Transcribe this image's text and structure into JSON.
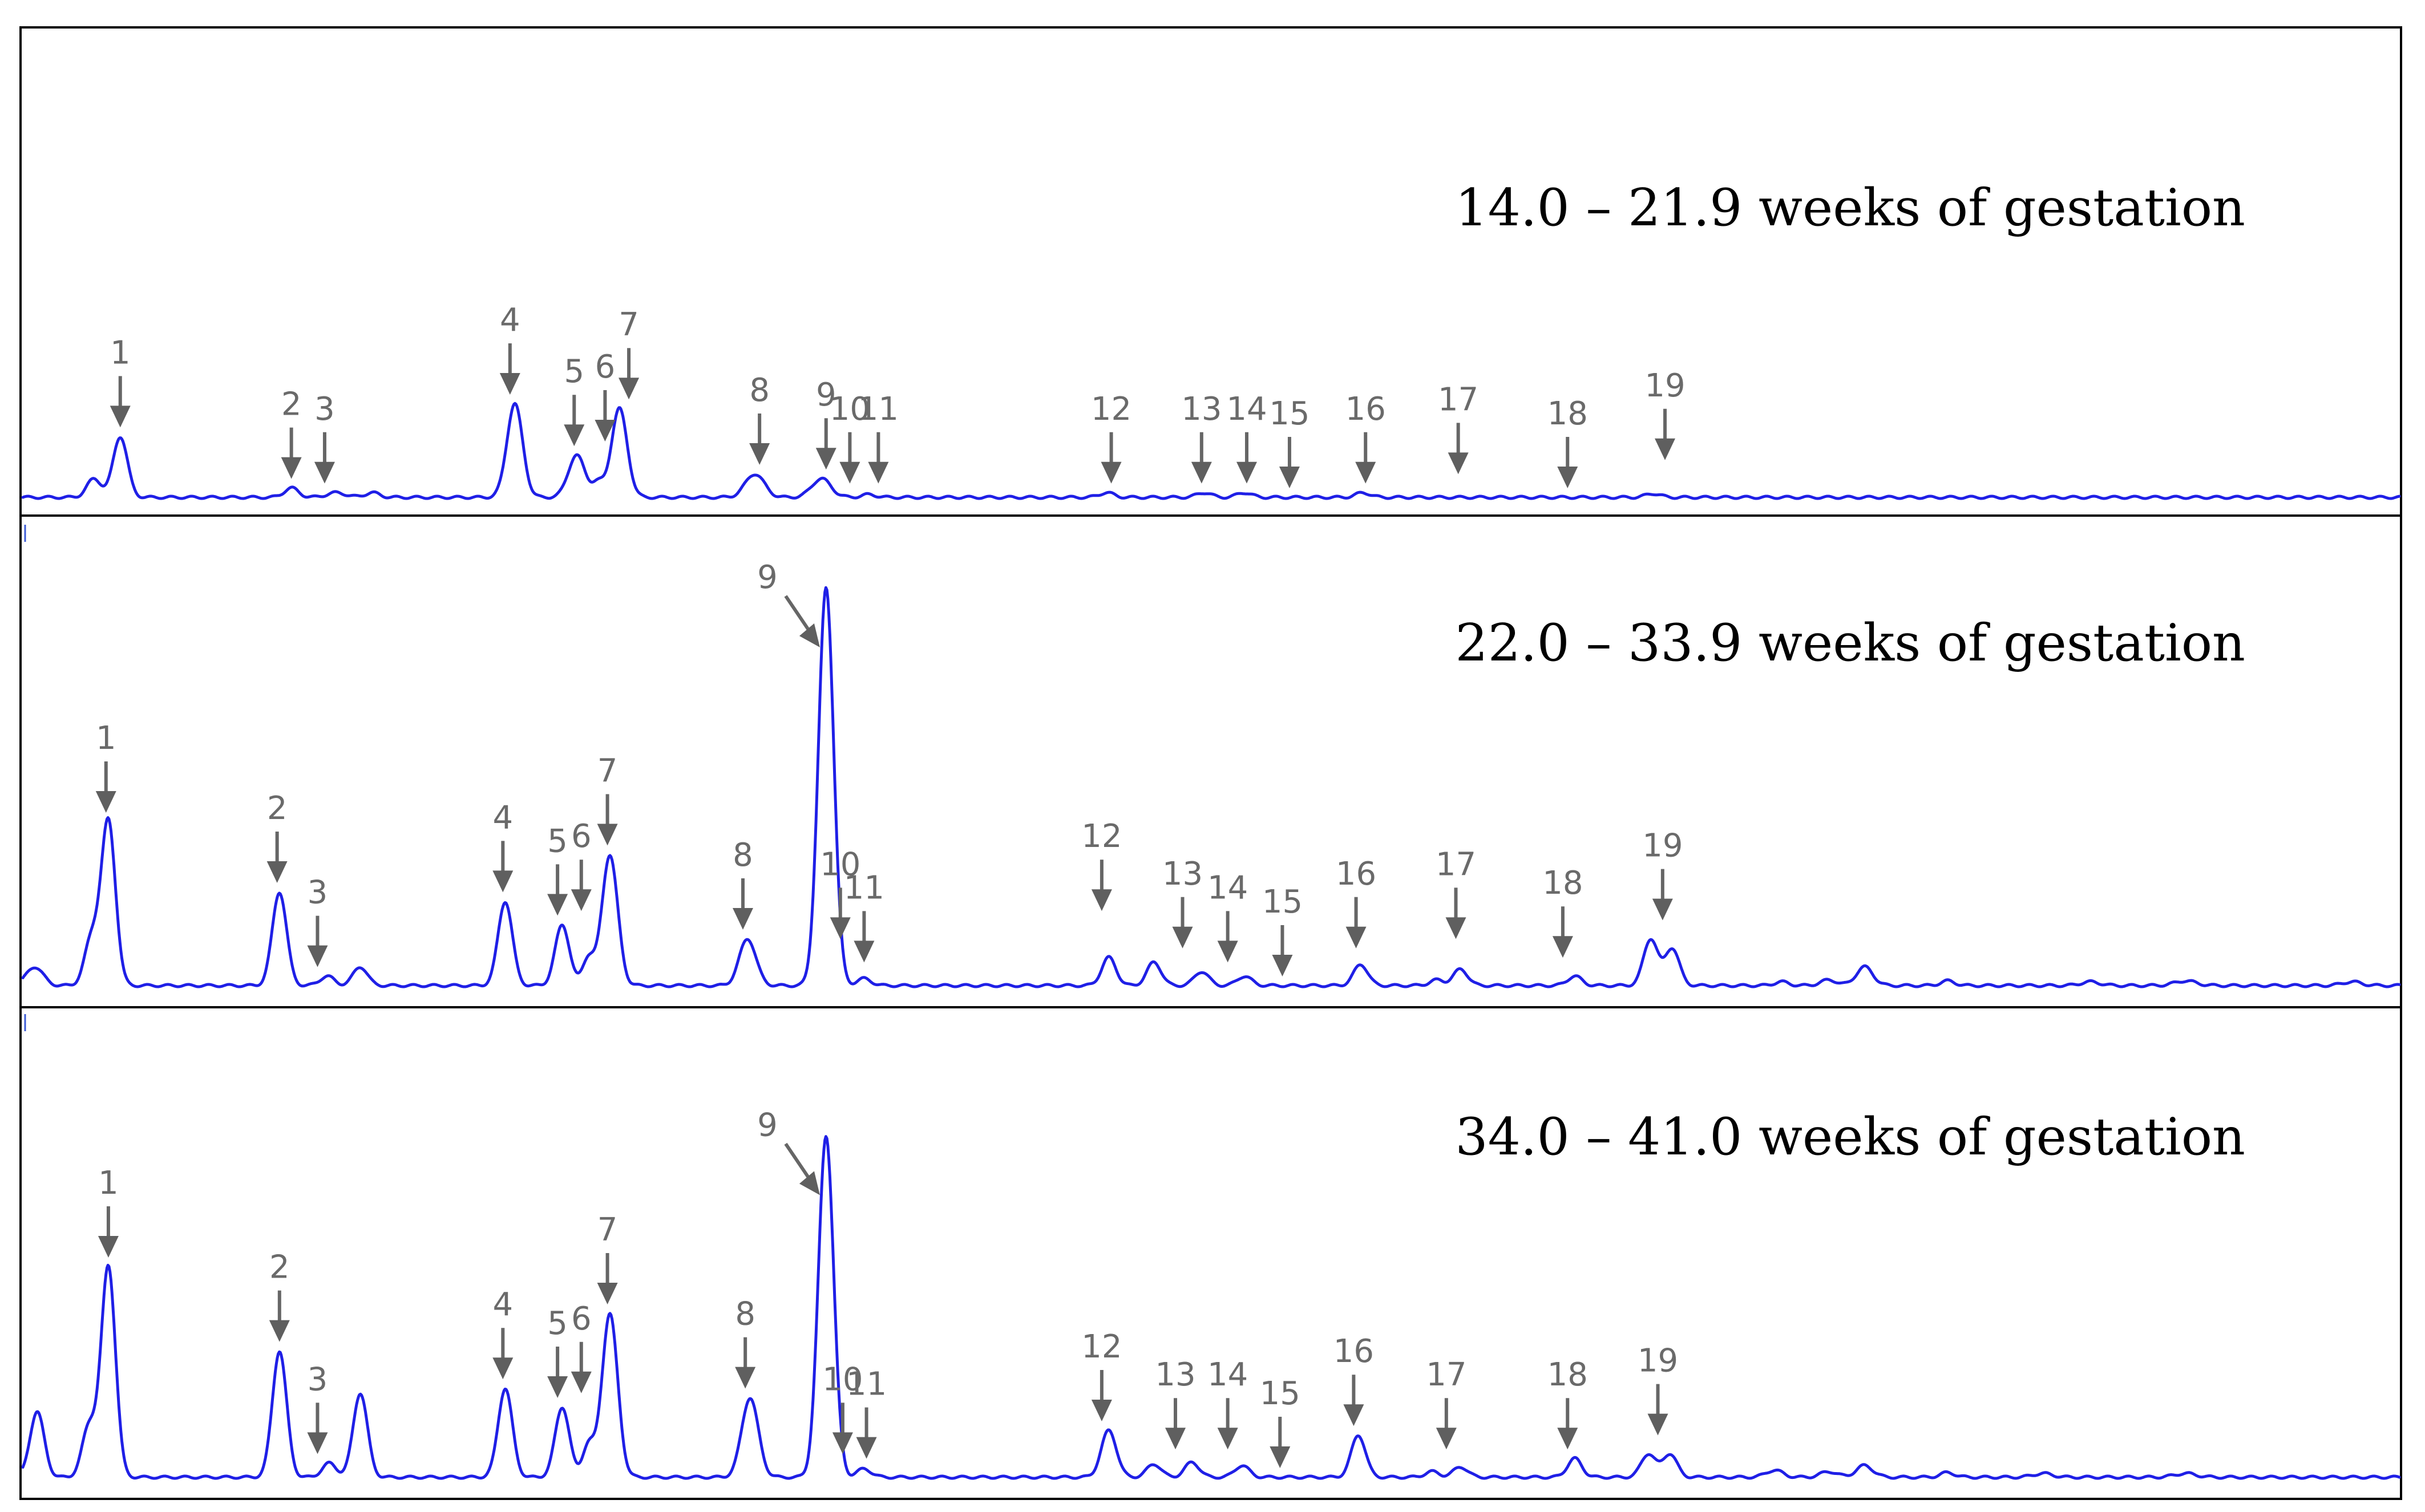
{
  "chart_data": {
    "type": "line",
    "description_kind": "chromatogram",
    "trace_color": "#1f1fe6",
    "annotation_color": "#666666",
    "x_range": [
      0,
      100
    ],
    "x_unit": "relative retention position",
    "y_range": [
      0,
      100
    ],
    "y_unit": "relative signal",
    "panels": [
      {
        "title": "14.0 – 21.9 weeks of gestation",
        "peaks": [
          {
            "x": 3.0,
            "h": 4,
            "w": 0.3
          },
          {
            "x": 4.1,
            "h": 13,
            "w": 0.3
          },
          {
            "x": 11.3,
            "h": 2,
            "w": 0.3
          },
          {
            "x": 13.2,
            "h": 1,
            "w": 0.4
          },
          {
            "x": 14.7,
            "h": 1,
            "w": 0.3
          },
          {
            "x": 20.7,
            "h": 20,
            "w": 0.33
          },
          {
            "x": 23.3,
            "h": 9,
            "w": 0.35
          },
          {
            "x": 24.2,
            "h": 3,
            "w": 0.25
          },
          {
            "x": 25.1,
            "h": 19,
            "w": 0.33
          },
          {
            "x": 30.8,
            "h": 5,
            "w": 0.4
          },
          {
            "x": 33.6,
            "h": 4,
            "w": 0.4
          },
          {
            "x": 35.6,
            "h": 0.6,
            "w": 0.3
          },
          {
            "x": 45.6,
            "h": 1,
            "w": 0.3
          },
          {
            "x": 49.7,
            "h": 1,
            "w": 0.3
          },
          {
            "x": 51.4,
            "h": 1,
            "w": 0.3
          },
          {
            "x": 56.4,
            "h": 1,
            "w": 0.3
          },
          {
            "x": 68.6,
            "h": 0.8,
            "w": 0.3
          }
        ],
        "labels": [
          {
            "text": "1",
            "x": 4.1,
            "peak_y": 13,
            "style": "down"
          },
          {
            "text": "2",
            "x": 11.3,
            "peak_y": 2,
            "style": "down"
          },
          {
            "text": "3",
            "x": 12.7,
            "peak_y": 1,
            "style": "down"
          },
          {
            "text": "4",
            "x": 20.5,
            "peak_y": 20,
            "style": "down"
          },
          {
            "text": "5",
            "x": 23.2,
            "peak_y": 9,
            "style": "down"
          },
          {
            "text": "6",
            "x": 24.5,
            "peak_y": 10,
            "style": "down"
          },
          {
            "text": "7",
            "x": 25.5,
            "peak_y": 19,
            "style": "down"
          },
          {
            "text": "8",
            "x": 31.0,
            "peak_y": 5,
            "style": "down"
          },
          {
            "text": "9",
            "x": 33.8,
            "peak_y": 4,
            "style": "down"
          },
          {
            "text": "10",
            "x": 34.8,
            "peak_y": 1,
            "style": "down"
          },
          {
            "text": "11",
            "x": 36.0,
            "peak_y": 1,
            "style": "down"
          },
          {
            "text": "12",
            "x": 45.8,
            "peak_y": 1,
            "style": "down"
          },
          {
            "text": "13",
            "x": 49.6,
            "peak_y": 1,
            "style": "down"
          },
          {
            "text": "14",
            "x": 51.5,
            "peak_y": 1,
            "style": "down"
          },
          {
            "text": "15",
            "x": 53.3,
            "peak_y": 0,
            "style": "down"
          },
          {
            "text": "16",
            "x": 56.5,
            "peak_y": 1,
            "style": "down"
          },
          {
            "text": "17",
            "x": 60.4,
            "peak_y": 3,
            "style": "down"
          },
          {
            "text": "18",
            "x": 65.0,
            "peak_y": 0,
            "style": "down"
          },
          {
            "text": "19",
            "x": 69.1,
            "peak_y": 6,
            "style": "down"
          }
        ]
      },
      {
        "title": "22.0 – 33.9 weeks of gestation",
        "peaks": [
          {
            "x": 0.5,
            "h": 4,
            "w": 0.35
          },
          {
            "x": 2.9,
            "h": 10,
            "w": 0.3
          },
          {
            "x": 3.6,
            "h": 35,
            "w": 0.3
          },
          {
            "x": 10.8,
            "h": 20,
            "w": 0.3
          },
          {
            "x": 12.8,
            "h": 2,
            "w": 0.3
          },
          {
            "x": 14.2,
            "h": 4,
            "w": 0.3
          },
          {
            "x": 20.3,
            "h": 18,
            "w": 0.3
          },
          {
            "x": 22.7,
            "h": 13,
            "w": 0.3
          },
          {
            "x": 23.8,
            "h": 6,
            "w": 0.25
          },
          {
            "x": 24.7,
            "h": 28,
            "w": 0.33
          },
          {
            "x": 30.5,
            "h": 10,
            "w": 0.35
          },
          {
            "x": 33.8,
            "h": 85,
            "w": 0.32
          },
          {
            "x": 35.4,
            "h": 1.5,
            "w": 0.3
          },
          {
            "x": 45.7,
            "h": 6,
            "w": 0.3
          },
          {
            "x": 47.6,
            "h": 5,
            "w": 0.3
          },
          {
            "x": 49.6,
            "h": 3,
            "w": 0.3
          },
          {
            "x": 51.4,
            "h": 2,
            "w": 0.3
          },
          {
            "x": 56.3,
            "h": 4.5,
            "w": 0.3
          },
          {
            "x": 59.5,
            "h": 1.2,
            "w": 0.3
          },
          {
            "x": 60.5,
            "h": 3.5,
            "w": 0.3
          },
          {
            "x": 65.3,
            "h": 2,
            "w": 0.3
          },
          {
            "x": 68.5,
            "h": 10,
            "w": 0.3
          },
          {
            "x": 69.4,
            "h": 8,
            "w": 0.3
          },
          {
            "x": 74.0,
            "h": 0.8,
            "w": 0.3
          },
          {
            "x": 76.0,
            "h": 1.2,
            "w": 0.35
          },
          {
            "x": 77.5,
            "h": 4,
            "w": 0.35
          },
          {
            "x": 81.0,
            "h": 1.0,
            "w": 0.3
          },
          {
            "x": 87.0,
            "h": 0.8,
            "w": 0.4
          },
          {
            "x": 91.0,
            "h": 1.0,
            "w": 0.45
          },
          {
            "x": 98.0,
            "h": 0.8,
            "w": 0.4
          }
        ],
        "labels": [
          {
            "text": "1",
            "x": 3.5,
            "peak_y": 35,
            "style": "down"
          },
          {
            "text": "2",
            "x": 10.7,
            "peak_y": 20,
            "style": "down"
          },
          {
            "text": "3",
            "x": 12.4,
            "peak_y": 2,
            "style": "down"
          },
          {
            "text": "4",
            "x": 20.2,
            "peak_y": 18,
            "style": "down"
          },
          {
            "text": "5",
            "x": 22.5,
            "peak_y": 13,
            "style": "down"
          },
          {
            "text": "6",
            "x": 23.5,
            "peak_y": 14,
            "style": "down"
          },
          {
            "text": "7",
            "x": 24.6,
            "peak_y": 28,
            "style": "down"
          },
          {
            "text": "8",
            "x": 30.3,
            "peak_y": 10,
            "style": "down"
          },
          {
            "text": "9",
            "x": 33.3,
            "peak_y": 85,
            "style": "diagonal"
          },
          {
            "text": "10",
            "x": 34.4,
            "peak_y": 8,
            "style": "down"
          },
          {
            "text": "11",
            "x": 35.4,
            "peak_y": 3,
            "style": "down"
          },
          {
            "text": "12",
            "x": 45.4,
            "peak_y": 14,
            "style": "down"
          },
          {
            "text": "13",
            "x": 48.8,
            "peak_y": 6,
            "style": "down"
          },
          {
            "text": "14",
            "x": 50.7,
            "peak_y": 3,
            "style": "down"
          },
          {
            "text": "15",
            "x": 53.0,
            "peak_y": 0,
            "style": "down"
          },
          {
            "text": "16",
            "x": 56.1,
            "peak_y": 6,
            "style": "down"
          },
          {
            "text": "17",
            "x": 60.3,
            "peak_y": 8,
            "style": "down"
          },
          {
            "text": "18",
            "x": 64.8,
            "peak_y": 4,
            "style": "down"
          },
          {
            "text": "19",
            "x": 69.0,
            "peak_y": 12,
            "style": "down"
          }
        ]
      },
      {
        "title": "34.0 – 41.0 weeks of gestation",
        "peaks": [
          {
            "x": 0.6,
            "h": 14,
            "w": 0.3
          },
          {
            "x": 2.8,
            "h": 11,
            "w": 0.3
          },
          {
            "x": 3.6,
            "h": 45,
            "w": 0.3
          },
          {
            "x": 10.8,
            "h": 27,
            "w": 0.3
          },
          {
            "x": 12.9,
            "h": 3,
            "w": 0.3
          },
          {
            "x": 14.2,
            "h": 18,
            "w": 0.3
          },
          {
            "x": 20.3,
            "h": 19,
            "w": 0.3
          },
          {
            "x": 22.7,
            "h": 15,
            "w": 0.3
          },
          {
            "x": 23.8,
            "h": 7,
            "w": 0.25
          },
          {
            "x": 24.7,
            "h": 35,
            "w": 0.33
          },
          {
            "x": 30.6,
            "h": 17,
            "w": 0.35
          },
          {
            "x": 33.8,
            "h": 73,
            "w": 0.32
          },
          {
            "x": 35.4,
            "h": 1.8,
            "w": 0.3
          },
          {
            "x": 45.7,
            "h": 10,
            "w": 0.32
          },
          {
            "x": 47.6,
            "h": 2.8,
            "w": 0.3
          },
          {
            "x": 49.2,
            "h": 3.2,
            "w": 0.3
          },
          {
            "x": 51.3,
            "h": 2.5,
            "w": 0.3
          },
          {
            "x": 56.2,
            "h": 9,
            "w": 0.3
          },
          {
            "x": 59.3,
            "h": 1.2,
            "w": 0.3
          },
          {
            "x": 60.5,
            "h": 2.2,
            "w": 0.3
          },
          {
            "x": 65.3,
            "h": 4,
            "w": 0.3
          },
          {
            "x": 68.4,
            "h": 5,
            "w": 0.3
          },
          {
            "x": 69.3,
            "h": 5,
            "w": 0.3
          },
          {
            "x": 73.7,
            "h": 1.5,
            "w": 0.35
          },
          {
            "x": 76.0,
            "h": 1.2,
            "w": 0.35
          },
          {
            "x": 77.5,
            "h": 2.5,
            "w": 0.35
          },
          {
            "x": 81.0,
            "h": 1.0,
            "w": 0.3
          },
          {
            "x": 85.0,
            "h": 0.8,
            "w": 0.4
          },
          {
            "x": 91.0,
            "h": 0.8,
            "w": 0.45
          }
        ],
        "labels": [
          {
            "text": "1",
            "x": 3.6,
            "peak_y": 45,
            "style": "down"
          },
          {
            "text": "2",
            "x": 10.8,
            "peak_y": 27,
            "style": "down"
          },
          {
            "text": "3",
            "x": 12.4,
            "peak_y": 3,
            "style": "down"
          },
          {
            "text": "4",
            "x": 20.2,
            "peak_y": 19,
            "style": "down"
          },
          {
            "text": "5",
            "x": 22.5,
            "peak_y": 15,
            "style": "down"
          },
          {
            "text": "6",
            "x": 23.5,
            "peak_y": 16,
            "style": "down"
          },
          {
            "text": "7",
            "x": 24.6,
            "peak_y": 35,
            "style": "down"
          },
          {
            "text": "8",
            "x": 30.4,
            "peak_y": 17,
            "style": "down"
          },
          {
            "text": "9",
            "x": 33.3,
            "peak_y": 73,
            "style": "diagonal"
          },
          {
            "text": "10",
            "x": 34.5,
            "peak_y": 3,
            "style": "down"
          },
          {
            "text": "11",
            "x": 35.5,
            "peak_y": 2,
            "style": "down"
          },
          {
            "text": "12",
            "x": 45.4,
            "peak_y": 10,
            "style": "down"
          },
          {
            "text": "13",
            "x": 48.5,
            "peak_y": 4,
            "style": "down"
          },
          {
            "text": "14",
            "x": 50.7,
            "peak_y": 4,
            "style": "down"
          },
          {
            "text": "15",
            "x": 52.9,
            "peak_y": 0,
            "style": "down"
          },
          {
            "text": "16",
            "x": 56.0,
            "peak_y": 9,
            "style": "down"
          },
          {
            "text": "17",
            "x": 59.9,
            "peak_y": 4,
            "style": "down"
          },
          {
            "text": "18",
            "x": 65.0,
            "peak_y": 4,
            "style": "down"
          },
          {
            "text": "19",
            "x": 68.8,
            "peak_y": 7,
            "style": "down"
          }
        ]
      }
    ]
  }
}
